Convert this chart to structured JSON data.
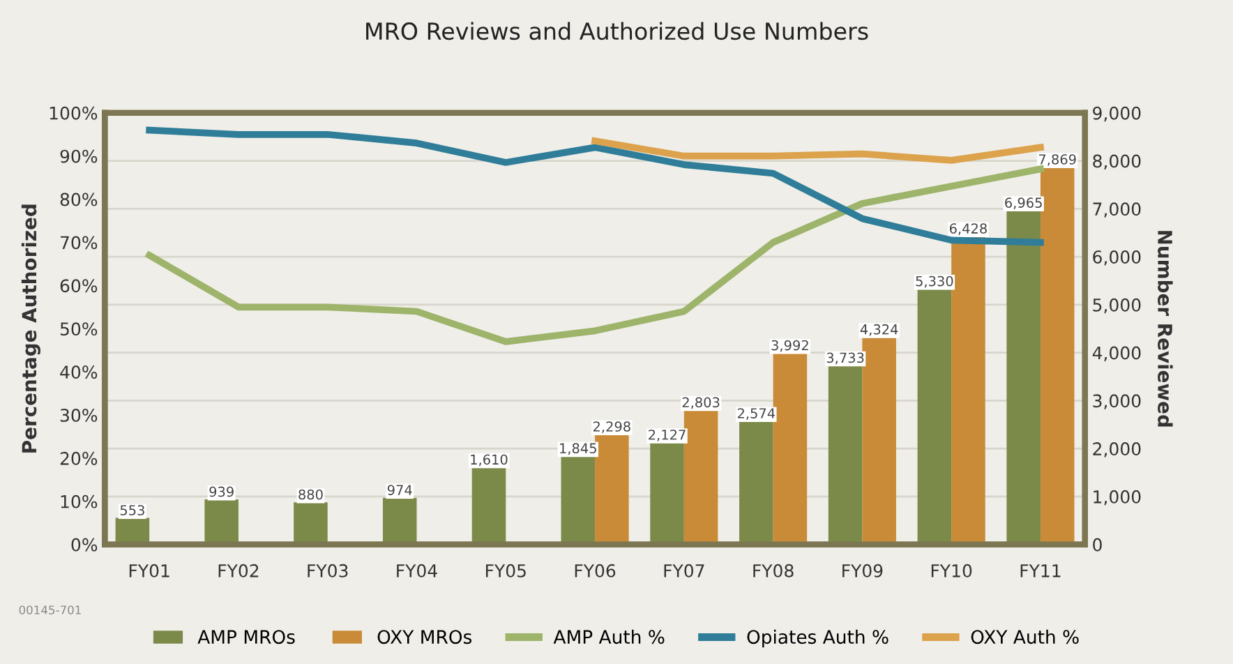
{
  "chart_data": {
    "type": "bar",
    "title": "MRO Reviews and Authorized Use Numbers",
    "ylabel": "Percentage Authorized",
    "y2label": "Number Reviewed",
    "categories": [
      "FY01",
      "FY02",
      "FY03",
      "FY04",
      "FY05",
      "FY06",
      "FY07",
      "FY08",
      "FY09",
      "FY10",
      "FY11"
    ],
    "series": [
      {
        "name": "AMP MROs",
        "axis": "y2",
        "color": "#7b8a48",
        "values": [
          553,
          939,
          880,
          974,
          1610,
          1845,
          2127,
          2574,
          3733,
          5330,
          6965
        ],
        "value_labels": [
          "553",
          "939",
          "880",
          "974",
          "1,610",
          "1,845",
          "2,127",
          "2,574",
          "3,733",
          "5,330",
          "6,965"
        ]
      },
      {
        "name": "OXY MROs",
        "axis": "y2",
        "color": "#c98b37",
        "values": [
          null,
          null,
          null,
          null,
          null,
          2298,
          2803,
          3992,
          4324,
          6428,
          7869
        ],
        "value_labels": [
          null,
          null,
          null,
          null,
          null,
          "2,298",
          "2,803",
          "3,992",
          "4,324",
          "6,428",
          "7,869"
        ]
      },
      {
        "name": "AMP Auth %",
        "type": "line",
        "color": "#9db46a",
        "values": [
          67,
          55,
          55,
          54,
          47,
          49.5,
          54,
          70,
          79,
          83,
          87
        ]
      },
      {
        "name": "Opiates Auth %",
        "type": "line",
        "color": "#2f7d98",
        "values": [
          96,
          95,
          95,
          93,
          88.5,
          92,
          88,
          86,
          75.5,
          70.5,
          70
        ]
      },
      {
        "name": "OXY Auth %",
        "type": "line",
        "color": "#dca24c",
        "values": [
          null,
          null,
          null,
          null,
          null,
          93.5,
          90,
          90,
          90.5,
          89,
          92
        ]
      }
    ],
    "ylim": [
      0,
      100
    ],
    "yticks": [
      {
        "value": 0,
        "label": "0%"
      },
      {
        "value": 10,
        "label": "10%"
      },
      {
        "value": 20,
        "label": "20%"
      },
      {
        "value": 30,
        "label": "30%"
      },
      {
        "value": 40,
        "label": "40%"
      },
      {
        "value": 50,
        "label": "50%"
      },
      {
        "value": 60,
        "label": "60%"
      },
      {
        "value": 70,
        "label": "70%"
      },
      {
        "value": 80,
        "label": "80%"
      },
      {
        "value": 90,
        "label": "90%"
      },
      {
        "value": 100,
        "label": "100%"
      }
    ],
    "y2lim": [
      0,
      9000
    ],
    "y2ticks": [
      0,
      {
        "value": 1000,
        "label": "1,000"
      },
      {
        "value": 2000,
        "label": "2,000"
      },
      {
        "value": 3000,
        "label": "3,000"
      },
      {
        "value": 4000,
        "label": "4,000"
      },
      {
        "value": 5000,
        "label": "5,000"
      },
      {
        "value": 6000,
        "label": "6,000"
      },
      {
        "value": 7000,
        "label": "7,000"
      },
      {
        "value": 8000,
        "label": "8,000"
      },
      {
        "value": 9000,
        "label": "9,000"
      }
    ],
    "grid": "y",
    "legend": "bottom",
    "marker": "none",
    "line_style": "solid",
    "annotations": [
      "00145-701"
    ]
  }
}
